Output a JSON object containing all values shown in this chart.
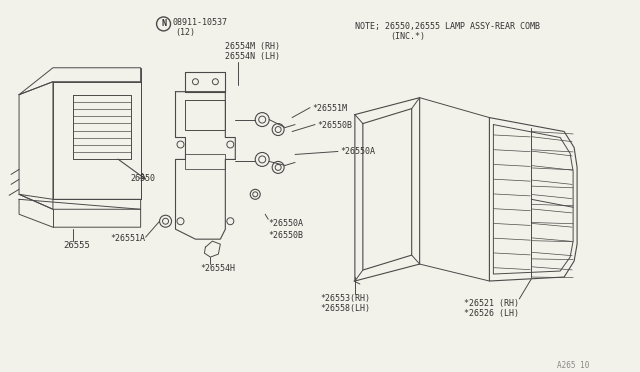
{
  "bg_color": "#f2f2ea",
  "line_color": "#4a4a4a",
  "text_color": "#333333",
  "note_line1": "NOTE; 26550,26555 LAMP ASSY-REAR COMB",
  "note_line2": "(INC.*)",
  "part_number_bolt": "08911-10537",
  "part_bolt_qty": "(12)",
  "part_26554MRH": "26554M (RH)",
  "part_26554NLH": "26554N (LH)",
  "part_26551M": "*26551M",
  "part_26550B_top": "*26550B",
  "part_26550A_right": "*26550A",
  "part_26551A": "*26551A",
  "part_26550A_mid": "*26550A",
  "part_26550B_mid": "*26550B",
  "part_26554H": "*26554H",
  "part_26553RH": "*26553(RH)",
  "part_26558LH": "*26558(LH)",
  "part_26521RH": "*26521 (RH)",
  "part_26526LH": "*26526 (LH)",
  "part_26550": "26550",
  "part_26555": "26555",
  "page_ref": "A265 10"
}
